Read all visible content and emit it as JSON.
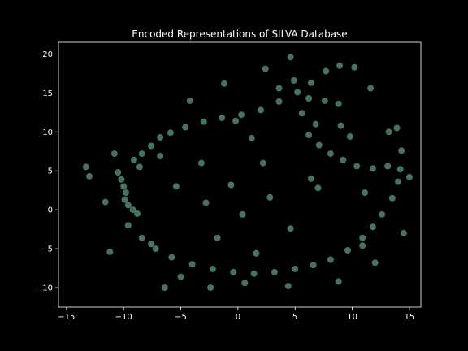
{
  "chart_data": {
    "type": "scatter",
    "title": "Encoded Representations of SILVA Database",
    "xlabel": "",
    "ylabel": "",
    "xlim": [
      -15.7,
      16.0
    ],
    "ylim": [
      -12.5,
      21.5
    ],
    "xticks": [
      -15,
      -10,
      -5,
      0,
      5,
      10,
      15
    ],
    "yticks": [
      -10,
      -5,
      0,
      5,
      10,
      15,
      20
    ],
    "grid": false,
    "legend": "none",
    "marker_color": "#7fcdbb",
    "background_color": "#000000",
    "axes_color": "#ffffff",
    "series": [
      {
        "values": [
          [
            -10.5,
            4.8
          ],
          [
            -10.2,
            3.9
          ],
          [
            -10.0,
            3.0
          ],
          [
            -9.8,
            2.2
          ],
          [
            -9.9,
            1.3
          ],
          [
            -9.6,
            0.6
          ],
          [
            -9.2,
            0.0
          ],
          [
            -8.8,
            -0.5
          ],
          [
            -8.6,
            5.5
          ],
          [
            -9.1,
            6.4
          ],
          [
            -8.4,
            7.2
          ],
          [
            -7.6,
            8.2
          ],
          [
            -6.8,
            9.3
          ],
          [
            -5.9,
            9.9
          ],
          [
            -4.6,
            10.6
          ],
          [
            -3.0,
            11.3
          ],
          [
            -1.4,
            11.8
          ],
          [
            0.3,
            12.2
          ],
          [
            2.0,
            12.8
          ],
          [
            3.6,
            13.9
          ],
          [
            5.2,
            15.1
          ],
          [
            6.4,
            16.3
          ],
          [
            7.7,
            17.8
          ],
          [
            8.9,
            18.5
          ],
          [
            10.2,
            18.3
          ],
          [
            6.2,
            14.3
          ],
          [
            7.6,
            14.0
          ],
          [
            8.8,
            13.6
          ],
          [
            5.6,
            12.4
          ],
          [
            6.2,
            9.6
          ],
          [
            7.1,
            8.3
          ],
          [
            8.1,
            7.2
          ],
          [
            9.2,
            6.4
          ],
          [
            10.4,
            5.6
          ],
          [
            11.8,
            5.3
          ],
          [
            13.1,
            5.6
          ],
          [
            14.2,
            5.2
          ],
          [
            14.0,
            3.6
          ],
          [
            13.5,
            1.5
          ],
          [
            12.6,
            -0.6
          ],
          [
            11.8,
            -2.2
          ],
          [
            10.9,
            -3.6
          ],
          [
            9.6,
            -5.2
          ],
          [
            8.1,
            -6.4
          ],
          [
            6.6,
            -7.1
          ],
          [
            5.0,
            -7.6
          ],
          [
            3.2,
            -8.0
          ],
          [
            1.4,
            -8.2
          ],
          [
            -0.4,
            -8.0
          ],
          [
            -2.2,
            -7.6
          ],
          [
            -4.0,
            -7.0
          ],
          [
            -5.8,
            -6.1
          ],
          [
            -7.2,
            -5.0
          ],
          [
            -8.4,
            -3.6
          ],
          [
            -9.6,
            -2.0
          ],
          [
            -7.6,
            -4.4
          ],
          [
            -5.0,
            -8.6
          ],
          [
            -2.4,
            -10.0
          ],
          [
            0.6,
            -9.4
          ],
          [
            4.4,
            -9.8
          ],
          [
            6.4,
            4.0
          ],
          [
            7.0,
            2.8
          ],
          [
            11.1,
            2.2
          ],
          [
            14.3,
            7.6
          ],
          [
            13.9,
            10.5
          ],
          [
            9.0,
            10.8
          ],
          [
            6.8,
            11.0
          ],
          [
            9.8,
            9.4
          ],
          [
            -13.3,
            5.5
          ],
          [
            -13.0,
            4.3
          ],
          [
            -10.8,
            7.2
          ],
          [
            -6.8,
            6.9
          ],
          [
            -5.4,
            3.0
          ],
          [
            -3.2,
            6.0
          ],
          [
            -2.8,
            0.9
          ],
          [
            -0.6,
            3.2
          ],
          [
            0.4,
            -0.6
          ],
          [
            2.2,
            6.0
          ],
          [
            2.8,
            1.6
          ],
          [
            4.6,
            -2.4
          ],
          [
            1.6,
            -5.6
          ],
          [
            -1.8,
            -3.6
          ],
          [
            -11.2,
            -5.4
          ],
          [
            -11.6,
            1.0
          ],
          [
            -6.4,
            -10.0
          ],
          [
            -4.2,
            14.0
          ],
          [
            -1.2,
            16.2
          ],
          [
            2.4,
            18.1
          ],
          [
            4.6,
            19.6
          ],
          [
            11.6,
            15.6
          ],
          [
            13.2,
            10.0
          ],
          [
            15.0,
            4.2
          ],
          [
            14.5,
            -3.0
          ],
          [
            12.0,
            -6.8
          ],
          [
            8.8,
            -9.2
          ],
          [
            -0.2,
            11.4
          ],
          [
            1.2,
            9.2
          ],
          [
            3.6,
            15.6
          ],
          [
            4.9,
            16.6
          ],
          [
            10.9,
            -4.6
          ]
        ]
      }
    ]
  }
}
